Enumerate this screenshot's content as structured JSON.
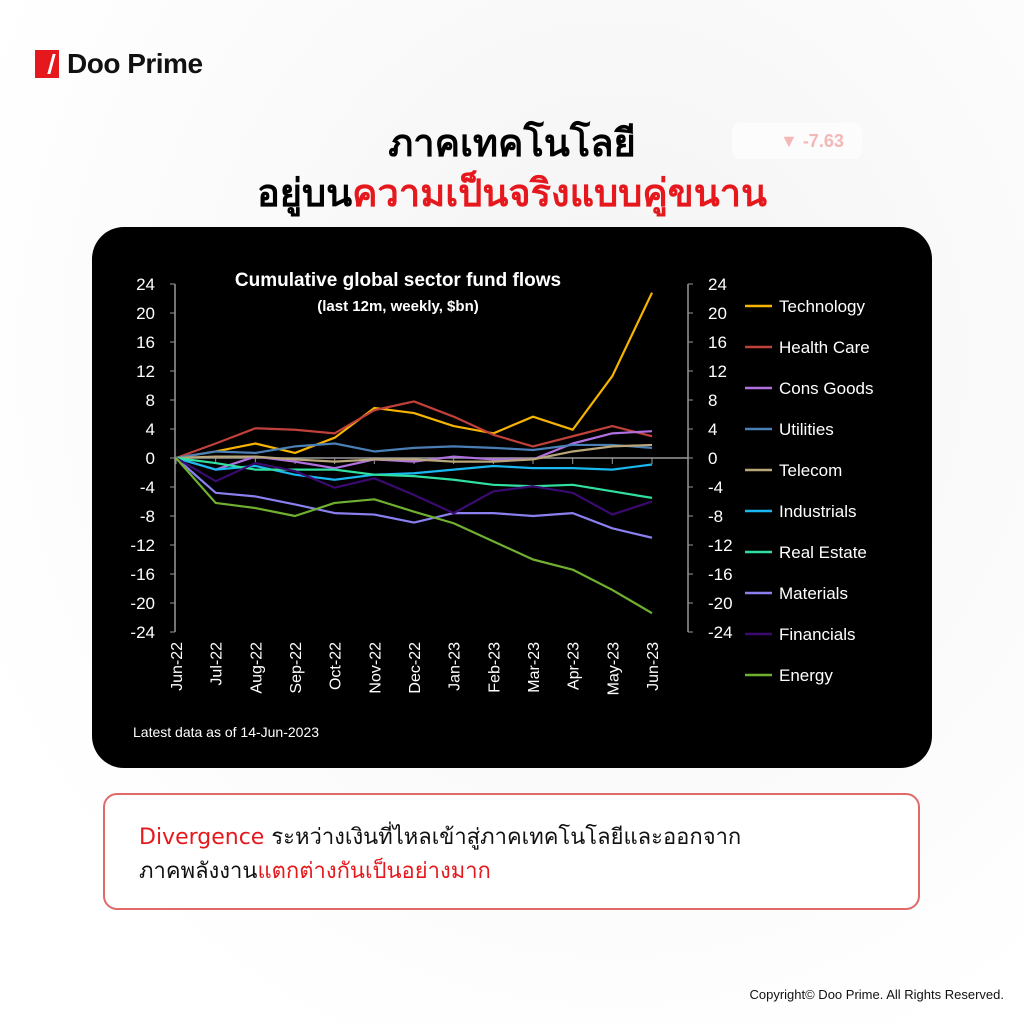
{
  "brand": {
    "name": "Doo Prime"
  },
  "headline": {
    "line1": "ภาคเทคโนโลยี",
    "line2_black": "อยู่บน",
    "line2_red": "ความเป็นจริงแบบคู่ขนาน"
  },
  "background_badge": {
    "text": "▼ -7.63"
  },
  "chart_data": {
    "type": "line",
    "title": "Cumulative global sector fund flows",
    "subtitle": "(last 12m, weekly, $bn)",
    "footnote": "Latest data as of 14-Jun-2023",
    "x": [
      "Jun-22",
      "Jul-22",
      "Aug-22",
      "Sep-22",
      "Oct-22",
      "Nov-22",
      "Dec-22",
      "Jan-23",
      "Feb-23",
      "Mar-23",
      "Apr-23",
      "May-23",
      "Jun-23"
    ],
    "ylim": [
      -24,
      24
    ],
    "yticks": [
      24,
      20,
      16,
      12,
      8,
      4,
      0,
      -4,
      -8,
      -12,
      -16,
      -20,
      -24
    ],
    "dual_y_axis": true,
    "grid": false,
    "legend_placement": "right",
    "series": [
      {
        "name": "Technology",
        "color": "#f5b400",
        "values": [
          0,
          0.9,
          2,
          0.7,
          2.8,
          6.9,
          6.2,
          4.4,
          3.4,
          5.7,
          3.9,
          11.3,
          22.8
        ]
      },
      {
        "name": "Health Care",
        "color": "#c0403a",
        "values": [
          0,
          2,
          4.1,
          3.9,
          3.4,
          6.6,
          7.8,
          5.7,
          3.2,
          1.6,
          3,
          4.4,
          3
        ]
      },
      {
        "name": "Cons Goods",
        "color": "#b070e0",
        "values": [
          0,
          -1.6,
          0.2,
          -0.5,
          -1.4,
          -0.2,
          -0.5,
          0.2,
          -0.2,
          -0.2,
          2,
          3.4,
          3.7
        ]
      },
      {
        "name": "Utilities",
        "color": "#4a7fb5",
        "values": [
          0,
          0.9,
          0.7,
          1.6,
          2,
          0.9,
          1.4,
          1.6,
          1.4,
          1.1,
          1.8,
          1.8,
          1.4
        ]
      },
      {
        "name": "Telecom",
        "color": "#b9a77a",
        "values": [
          0,
          0.2,
          0.2,
          -0.2,
          -0.5,
          -0.2,
          -0.2,
          -0.5,
          -0.5,
          -0.2,
          0.9,
          1.6,
          1.8
        ]
      },
      {
        "name": "Industrials",
        "color": "#1ab8f0",
        "values": [
          0,
          -1.6,
          -1.1,
          -2.3,
          -3,
          -2.3,
          -2.1,
          -1.6,
          -1.1,
          -1.4,
          -1.4,
          -1.6,
          -0.9
        ]
      },
      {
        "name": "Real Estate",
        "color": "#30e0a0",
        "values": [
          0,
          -0.7,
          -1.6,
          -1.6,
          -1.6,
          -2.3,
          -2.5,
          -3,
          -3.7,
          -3.9,
          -3.7,
          -4.6,
          -5.5
        ]
      },
      {
        "name": "Materials",
        "color": "#8a80f0",
        "values": [
          0,
          -4.8,
          -5.3,
          -6.4,
          -7.6,
          -7.8,
          -8.9,
          -7.6,
          -7.6,
          -8,
          -7.6,
          -9.7,
          -11
        ]
      },
      {
        "name": "Financials",
        "color": "#3a0a70",
        "values": [
          0,
          -3.2,
          -0.7,
          -1.8,
          -4.1,
          -2.8,
          -5.1,
          -7.6,
          -4.6,
          -3.9,
          -4.8,
          -7.8,
          -6
        ]
      },
      {
        "name": "Energy",
        "color": "#70b030",
        "values": [
          0,
          -6.2,
          -6.9,
          -8,
          -6.2,
          -5.7,
          -7.4,
          -9,
          -11.5,
          -14,
          -15.4,
          -18.2,
          -21.4
        ]
      }
    ]
  },
  "note": {
    "word_red": "Divergence",
    "text1": " ระหว่างเงินที่ไหลเข้าสู่ภาคเทคโนโลยีและออกจาก",
    "text2": "ภาคพลังงาน",
    "text2_red": "แตกต่างกันเป็นอย่างมาก"
  },
  "copyright": "Copyright© Doo Prime. All Rights Reserved."
}
